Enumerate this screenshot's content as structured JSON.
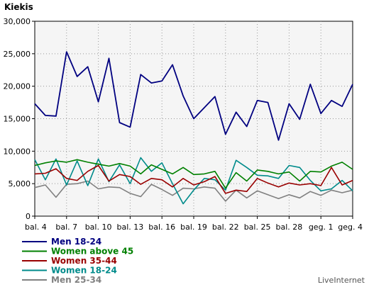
{
  "chart_data": {
    "type": "line",
    "title": "Kiekis",
    "source": "LiveInternet",
    "ylim": [
      0,
      30000
    ],
    "yticks": [
      0,
      5000,
      10000,
      15000,
      20000,
      25000,
      30000
    ],
    "ytick_labels": [
      "0",
      "5,000",
      "10,000",
      "15,000",
      "20,000",
      "25,000",
      "30,000"
    ],
    "x_tick_labels": [
      "bal. 4",
      "bal. 7",
      "bal. 10",
      "bal. 13",
      "bal. 16",
      "bal. 19",
      "bal. 22",
      "bal. 25",
      "bal. 28",
      "geg. 1",
      "geg. 4"
    ],
    "x_tick_indices": [
      0,
      3,
      6,
      9,
      12,
      15,
      18,
      21,
      24,
      27,
      30
    ],
    "grid": true,
    "legend_position": "bottom-left",
    "series": [
      {
        "name": "Men 18-24",
        "color": "#000080",
        "values": [
          17300,
          15500,
          15400,
          25300,
          21500,
          23000,
          17600,
          24300,
          14400,
          13700,
          21800,
          20500,
          20800,
          23300,
          18500,
          15000,
          null,
          18400,
          12600,
          16000,
          13800,
          17800,
          17500,
          11700,
          17300,
          14900,
          20300,
          15800,
          17800,
          16900,
          20300
        ]
      },
      {
        "name": "Women above 45",
        "color": "#008000",
        "values": [
          7800,
          8200,
          8500,
          8300,
          8700,
          8300,
          8000,
          7700,
          8100,
          7700,
          6500,
          7900,
          7200,
          6500,
          7500,
          6400,
          6500,
          6900,
          4300,
          6700,
          5400,
          7100,
          6900,
          6500,
          6800,
          5400,
          6900,
          6800,
          7700,
          8300,
          7200
        ]
      },
      {
        "name": "Women 35-44",
        "color": "#990000",
        "values": [
          6500,
          6600,
          7300,
          5800,
          5500,
          6900,
          7800,
          5400,
          6400,
          6100,
          4900,
          5800,
          5600,
          4500,
          5800,
          4800,
          5300,
          6100,
          3500,
          4000,
          3800,
          5800,
          5100,
          4500,
          5100,
          4800,
          5000,
          4700,
          7500,
          4800,
          5500
        ]
      },
      {
        "name": "Women 18-24",
        "color": "#008b8b",
        "values": [
          8700,
          5600,
          8800,
          4800,
          8500,
          4700,
          8800,
          5300,
          7900,
          5000,
          9000,
          6900,
          8200,
          5000,
          1900,
          4000,
          5800,
          5600,
          4000,
          8600,
          7500,
          6300,
          6200,
          5800,
          7800,
          7500,
          5500,
          3900,
          4200,
          5500,
          3900
        ]
      },
      {
        "name": "Men 25-34",
        "color": "#808080",
        "values": [
          4400,
          4800,
          2900,
          4900,
          5000,
          5400,
          4200,
          4500,
          4400,
          3500,
          3000,
          4900,
          4100,
          3200,
          4300,
          4200,
          4500,
          4300,
          2300,
          4000,
          2800,
          3900,
          3300,
          2700,
          3300,
          2800,
          3800,
          3200,
          4000,
          3600,
          4000
        ]
      }
    ]
  }
}
